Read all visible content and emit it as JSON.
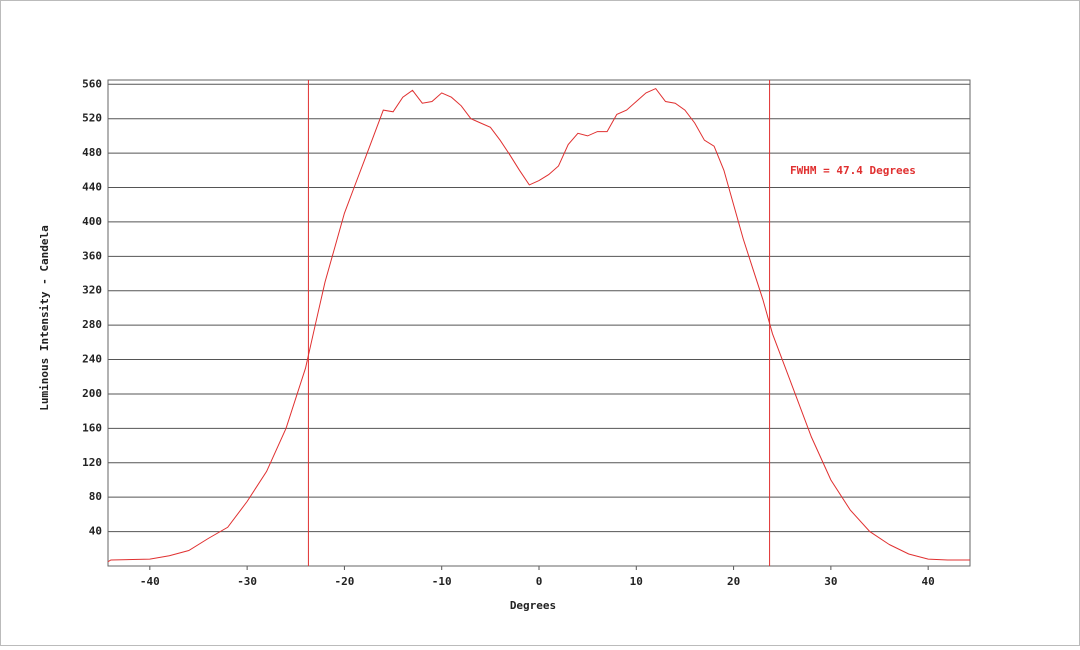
{
  "chart_data": {
    "type": "line",
    "xlabel": "Degrees",
    "ylabel": "Luminous Intensity - Candela",
    "annotation": "FWHM = 47.4 Degrees",
    "vlines": [
      -23.7,
      23.7
    ],
    "color": "#e03030",
    "x": [
      -44.3,
      -44,
      -40,
      -38,
      -36,
      -34,
      -32,
      -30,
      -28,
      -26,
      -24,
      -23,
      -22,
      -21,
      -20,
      -19,
      -18,
      -17,
      -16,
      -15,
      -14,
      -13,
      -12,
      -11,
      -10,
      -9,
      -8,
      -7,
      -6,
      -5,
      -4,
      -3,
      -2,
      -1,
      0,
      1,
      2,
      3,
      4,
      5,
      6,
      7,
      8,
      9,
      10,
      11,
      12,
      13,
      14,
      15,
      16,
      17,
      18,
      19,
      20,
      21,
      22,
      23,
      24,
      26,
      28,
      30,
      32,
      34,
      36,
      38,
      40,
      42,
      44.3
    ],
    "values": [
      5,
      7,
      8,
      12,
      18,
      32,
      45,
      75,
      110,
      160,
      230,
      280,
      330,
      370,
      410,
      440,
      470,
      500,
      530,
      528,
      545,
      553,
      538,
      540,
      550,
      545,
      535,
      520,
      515,
      510,
      495,
      478,
      460,
      443,
      448,
      455,
      465,
      490,
      503,
      500,
      505,
      505,
      525,
      530,
      540,
      550,
      555,
      540,
      538,
      530,
      515,
      495,
      488,
      460,
      420,
      380,
      345,
      310,
      270,
      210,
      150,
      100,
      65,
      40,
      25,
      14,
      8,
      7,
      7
    ],
    "xlim": [
      -44.3,
      44.3
    ],
    "xticks": [
      -40,
      -30,
      -20,
      -10,
      0,
      10,
      20,
      30,
      40
    ],
    "ylim": [
      0,
      565
    ],
    "yticks": [
      40,
      80,
      120,
      160,
      200,
      240,
      280,
      320,
      360,
      400,
      440,
      480,
      520,
      560
    ],
    "grid": true
  }
}
